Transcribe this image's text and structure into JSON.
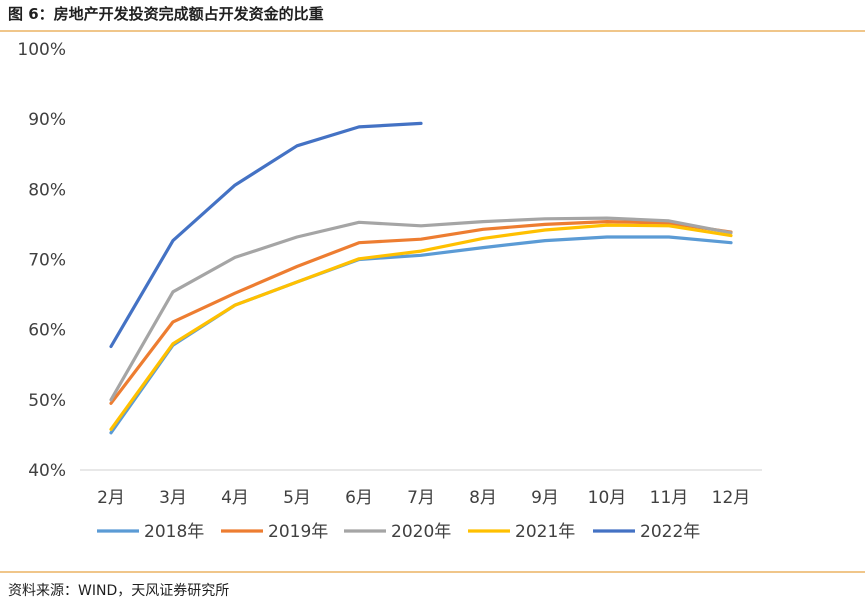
{
  "figure": {
    "title": "图 6：房地产开发投资完成额占开发资金的比重",
    "source": "资料来源：WIND，天风证券研究所"
  },
  "chart_data": {
    "type": "line",
    "title": "",
    "xlabel": "",
    "ylabel": "",
    "categories": [
      "2月",
      "3月",
      "4月",
      "5月",
      "6月",
      "7月",
      "8月",
      "9月",
      "10月",
      "11月",
      "12月"
    ],
    "ylim": [
      40,
      100
    ],
    "yticks": [
      40,
      50,
      60,
      70,
      80,
      90,
      100
    ],
    "ytick_labels": [
      "40%",
      "50%",
      "60%",
      "70%",
      "80%",
      "90%",
      "100%"
    ],
    "grid": false,
    "legend_position": "bottom",
    "series": [
      {
        "name": "2018年",
        "color": "#5b9bd5",
        "values": [
          45.3,
          57.8,
          63.5,
          66.8,
          70.0,
          70.6,
          71.7,
          72.7,
          73.2,
          73.2,
          72.4
        ]
      },
      {
        "name": "2019年",
        "color": "#ed7d31",
        "values": [
          49.5,
          61.1,
          65.2,
          69.0,
          72.4,
          72.9,
          74.3,
          75.0,
          75.4,
          75.2,
          73.9
        ]
      },
      {
        "name": "2020年",
        "color": "#a5a5a5",
        "values": [
          50.0,
          65.4,
          70.3,
          73.2,
          75.3,
          74.8,
          75.4,
          75.8,
          75.9,
          75.5,
          73.8
        ]
      },
      {
        "name": "2021年",
        "color": "#ffc000",
        "values": [
          45.8,
          58.0,
          63.5,
          66.8,
          70.1,
          71.2,
          73.0,
          74.2,
          74.9,
          74.8,
          73.4
        ]
      },
      {
        "name": "2022年",
        "color": "#4472c4",
        "values": [
          57.6,
          72.7,
          80.6,
          86.2,
          88.9,
          89.4,
          null,
          null,
          null,
          null,
          null
        ]
      }
    ]
  }
}
